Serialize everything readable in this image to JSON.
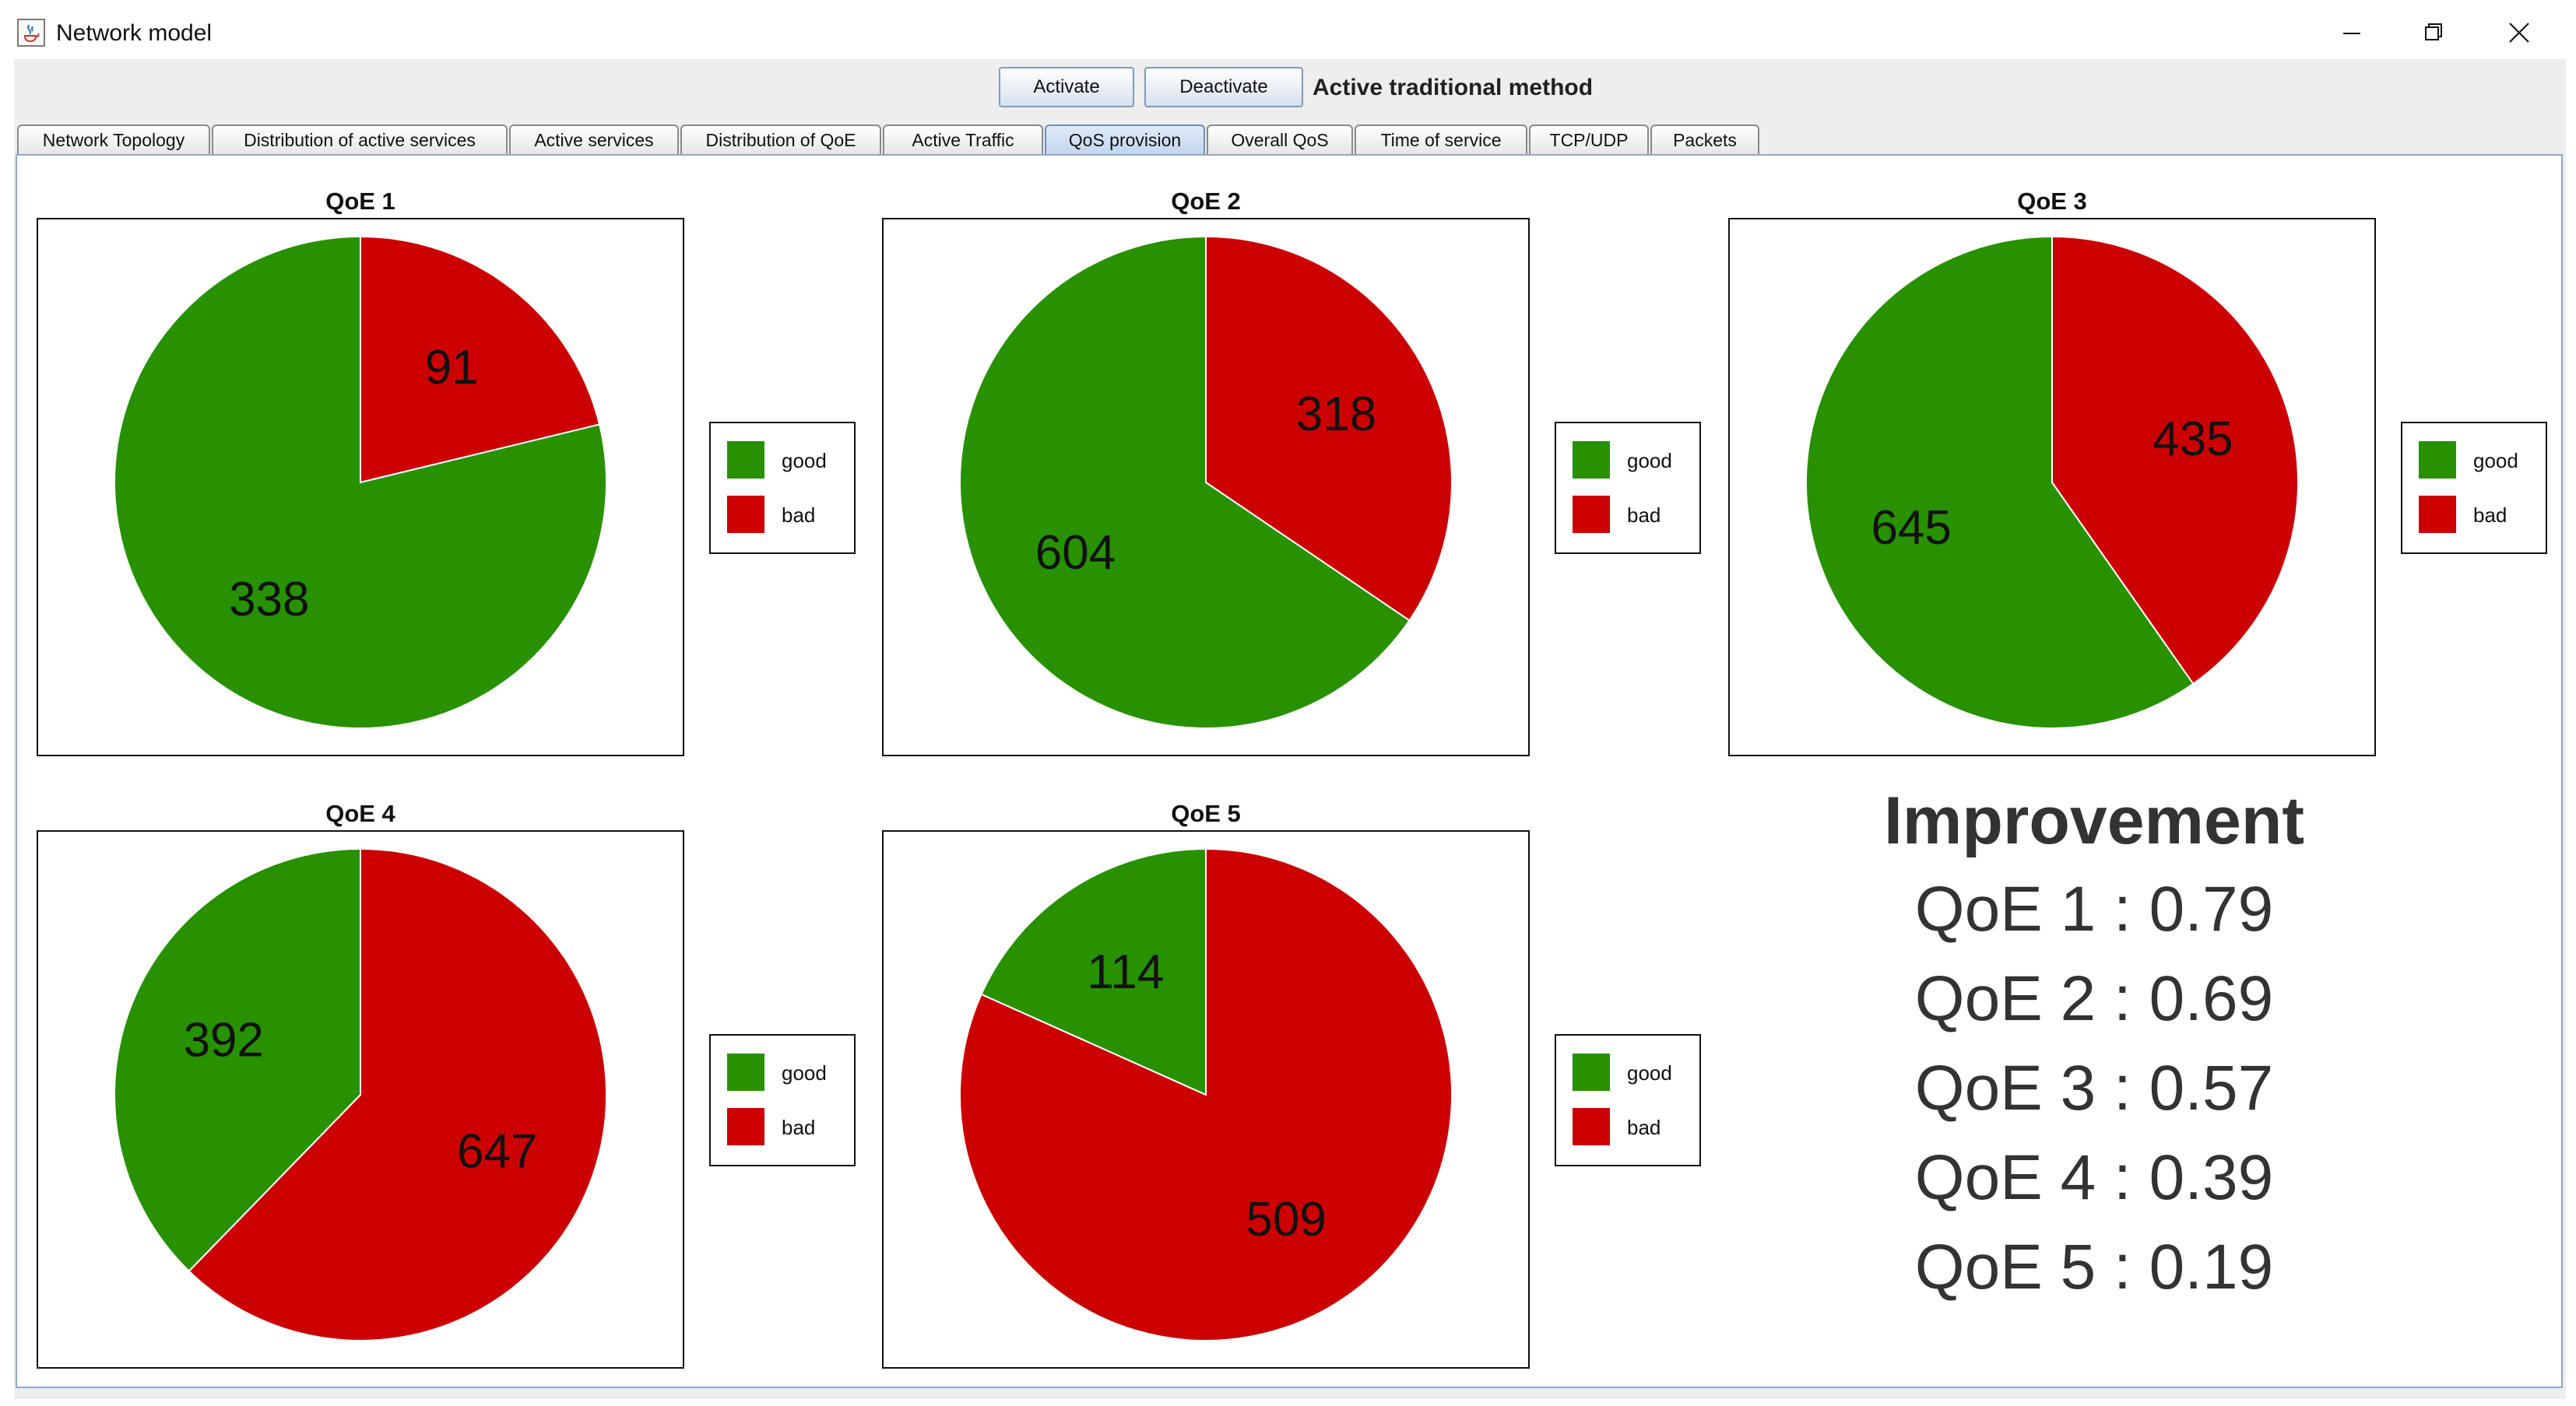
{
  "window": {
    "title": "Network model",
    "icon": "java-cup-icon",
    "controls": [
      "minimize-icon",
      "restore-icon",
      "close-icon"
    ]
  },
  "toolbar": {
    "activate_label": "Activate",
    "deactivate_label": "Deactivate",
    "status_label": "Active traditional method"
  },
  "tabs": [
    {
      "label": "Network Topology",
      "selected": false
    },
    {
      "label": "Distribution of active services",
      "selected": false
    },
    {
      "label": "Active services",
      "selected": false
    },
    {
      "label": "Distribution of QoE",
      "selected": false
    },
    {
      "label": "Active Traffic",
      "selected": false
    },
    {
      "label": "QoS provision",
      "selected": true
    },
    {
      "label": "Overall QoS",
      "selected": false
    },
    {
      "label": "Time of service",
      "selected": false
    },
    {
      "label": "TCP/UDP",
      "selected": false
    },
    {
      "label": "Packets",
      "selected": false
    }
  ],
  "colors": {
    "good": "#279100",
    "bad": "#cc0000"
  },
  "chart_data": [
    {
      "type": "pie",
      "title": "QoE 1",
      "categories": [
        "good",
        "bad"
      ],
      "values": [
        338,
        91
      ],
      "legend": [
        "good",
        "bad"
      ],
      "legend_position": "right"
    },
    {
      "type": "pie",
      "title": "QoE 2",
      "categories": [
        "good",
        "bad"
      ],
      "values": [
        604,
        318
      ],
      "legend": [
        "good",
        "bad"
      ],
      "legend_position": "right"
    },
    {
      "type": "pie",
      "title": "QoE 3",
      "categories": [
        "good",
        "bad"
      ],
      "values": [
        645,
        435
      ],
      "legend": [
        "good",
        "bad"
      ],
      "legend_position": "right"
    },
    {
      "type": "pie",
      "title": "QoE 4",
      "categories": [
        "good",
        "bad"
      ],
      "values": [
        392,
        647
      ],
      "legend": [
        "good",
        "bad"
      ],
      "legend_position": "right"
    },
    {
      "type": "pie",
      "title": "QoE 5",
      "categories": [
        "good",
        "bad"
      ],
      "values": [
        114,
        509
      ],
      "legend": [
        "good",
        "bad"
      ],
      "legend_position": "right"
    }
  ],
  "improvement": {
    "title": "Improvement",
    "lines": [
      "QoE 1 : 0.79",
      "QoE 2 : 0.69",
      "QoE 3 : 0.57",
      "QoE 4 : 0.39",
      "QoE 5 : 0.19"
    ]
  }
}
